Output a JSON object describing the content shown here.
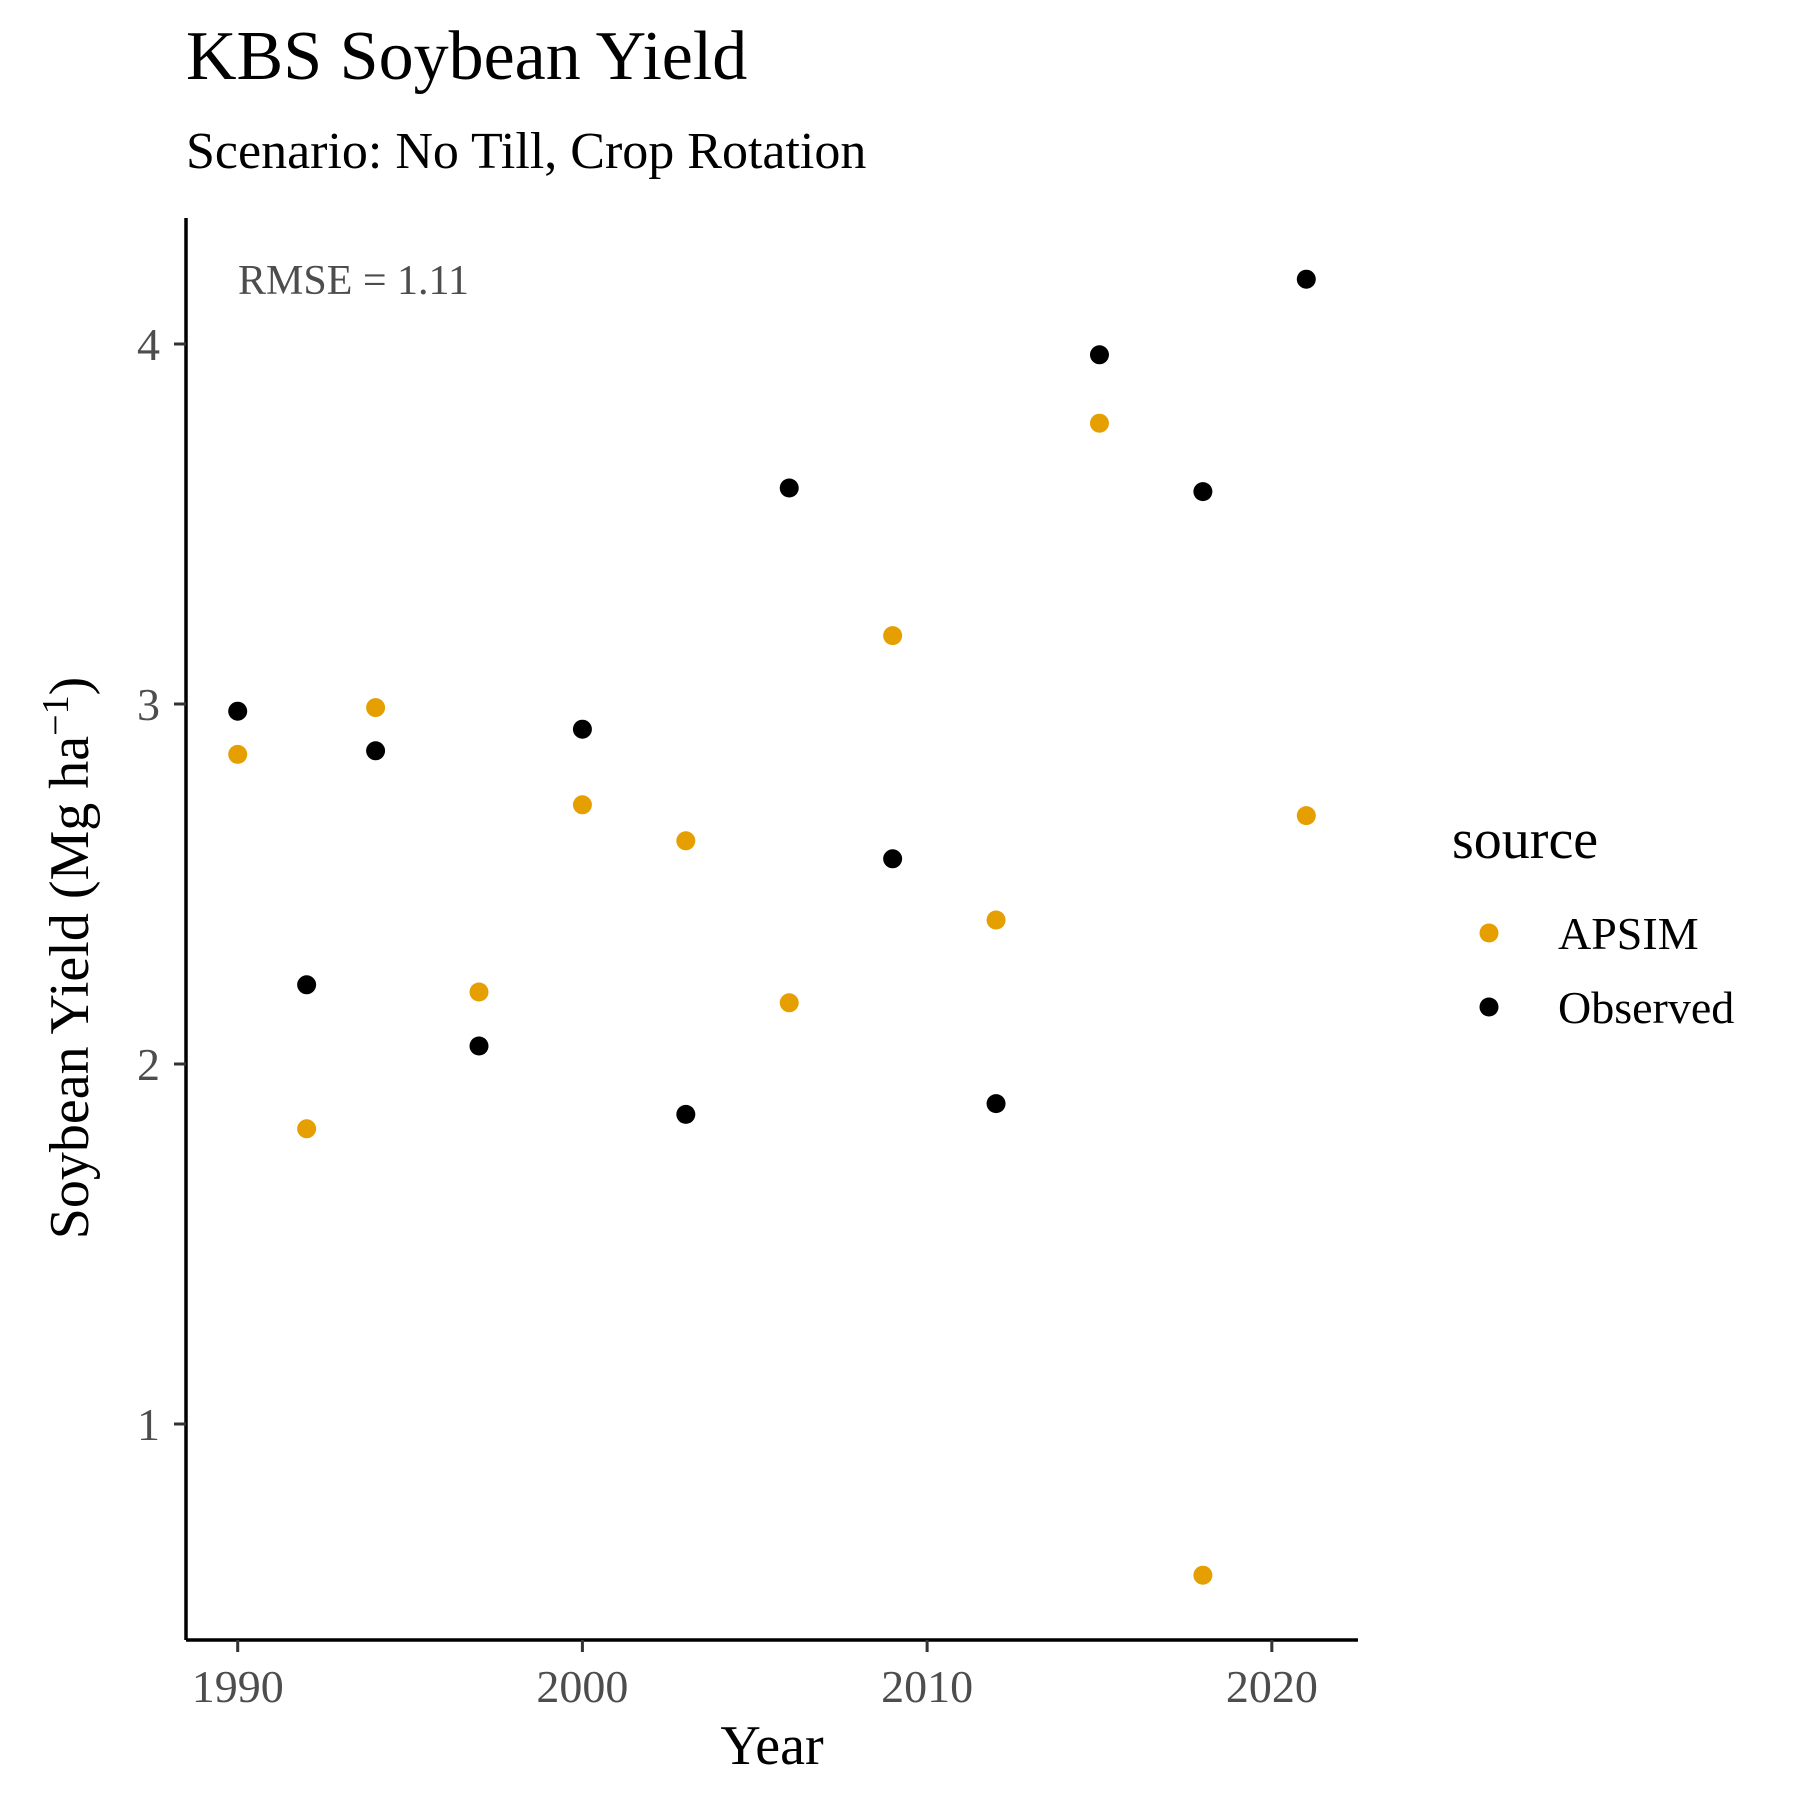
{
  "chart_data": {
    "type": "scatter",
    "title": "KBS Soybean Yield",
    "subtitle": "Scenario: No Till, Crop Rotation",
    "xlabel": "Year",
    "ylabel_main": "Soybean Yield (Mg ha",
    "ylabel_sup": "−1",
    "ylabel_close": ")",
    "annotation": "RMSE = 1.11",
    "xlim": [
      1988.5,
      2022.5
    ],
    "ylim": [
      0.4,
      4.35
    ],
    "xticks": [
      1990,
      2000,
      2010,
      2020
    ],
    "yticks": [
      1,
      2,
      3,
      4
    ],
    "grid": false,
    "legend": {
      "title": "source",
      "placement": "right"
    },
    "series": [
      {
        "name": "APSIM",
        "color": "#E69F00",
        "points": [
          {
            "x": 1990,
            "y": 2.86
          },
          {
            "x": 1992,
            "y": 1.82
          },
          {
            "x": 1994,
            "y": 2.99
          },
          {
            "x": 1997,
            "y": 2.2
          },
          {
            "x": 2000,
            "y": 2.72
          },
          {
            "x": 2003,
            "y": 2.62
          },
          {
            "x": 2006,
            "y": 2.17
          },
          {
            "x": 2009,
            "y": 3.19
          },
          {
            "x": 2012,
            "y": 2.4
          },
          {
            "x": 2015,
            "y": 3.78
          },
          {
            "x": 2018,
            "y": 0.58
          },
          {
            "x": 2021,
            "y": 2.69
          }
        ]
      },
      {
        "name": "Observed",
        "color": "#000000",
        "points": [
          {
            "x": 1990,
            "y": 2.98
          },
          {
            "x": 1992,
            "y": 2.22
          },
          {
            "x": 1994,
            "y": 2.87
          },
          {
            "x": 1997,
            "y": 2.05
          },
          {
            "x": 2000,
            "y": 2.93
          },
          {
            "x": 2003,
            "y": 1.86
          },
          {
            "x": 2006,
            "y": 3.6
          },
          {
            "x": 2009,
            "y": 2.57
          },
          {
            "x": 2012,
            "y": 1.89
          },
          {
            "x": 2015,
            "y": 3.97
          },
          {
            "x": 2018,
            "y": 3.59
          },
          {
            "x": 2021,
            "y": 4.18
          }
        ]
      }
    ]
  }
}
